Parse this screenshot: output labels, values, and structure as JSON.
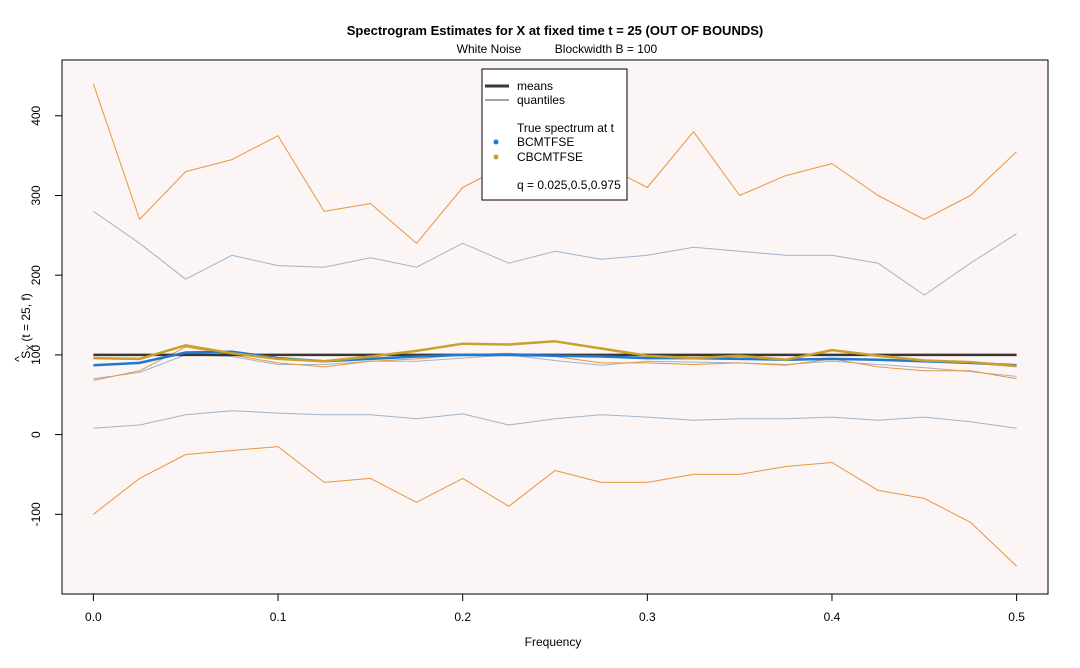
{
  "chart_data": {
    "type": "line",
    "title": "Spectrogram Estimates for X at fixed time t = 25 (OUT OF BOUNDS)",
    "subtitle_left": "White Noise",
    "subtitle_right": "Blockwidth B = 100",
    "xlabel": "Frequency",
    "ylabel": "Ŝ_X (t = 25, f)",
    "ylabel_hat": "^",
    "ylabel_S": "S",
    "ylabel_sub": "X",
    "ylabel_rest": "(t = 25, f)",
    "xlim": [
      -0.017,
      0.517
    ],
    "ylim": [
      -200,
      470
    ],
    "xticks": [
      0.0,
      0.1,
      0.2,
      0.3,
      0.4,
      0.5
    ],
    "xtick_labels": [
      "0.0",
      "0.1",
      "0.2",
      "0.3",
      "0.4",
      "0.5"
    ],
    "yticks": [
      -100,
      0,
      100,
      200,
      300,
      400
    ],
    "ytick_labels": [
      "-100",
      "0",
      "100",
      "200",
      "300",
      "400"
    ],
    "plot_background": "#fbf6f5",
    "legend": {
      "placement": "top-center",
      "means_label": "means",
      "quantiles_label": "quantiles",
      "true_label": "True spectrum at t",
      "bc_label": "BCMTFSE",
      "cbc_label": "CBCMTFSE",
      "q_label": "q = 0.025,0.5,0.975"
    },
    "colors": {
      "true": "#3d3530",
      "bc": "#1f78d1",
      "bc_quantile": "#9fb4cb",
      "cbc": "#c8a02c",
      "cbc_quantile": "#e8963d"
    },
    "x": [
      0.0,
      0.025,
      0.05,
      0.075,
      0.1,
      0.125,
      0.15,
      0.175,
      0.2,
      0.225,
      0.25,
      0.275,
      0.3,
      0.325,
      0.35,
      0.375,
      0.4,
      0.425,
      0.45,
      0.475,
      0.5
    ],
    "series": [
      {
        "name": "True spectrum at t",
        "role": "true",
        "values": [
          100,
          100,
          100,
          100,
          100,
          100,
          100,
          100,
          100,
          100,
          100,
          100,
          100,
          100,
          100,
          100,
          100,
          100,
          100,
          100,
          100
        ]
      },
      {
        "name": "BCMTFSE",
        "role": "bc-mean",
        "values": [
          87,
          90,
          103,
          104,
          96,
          92,
          95,
          98,
          100,
          100,
          99,
          98,
          96,
          96,
          95,
          94,
          95,
          94,
          92,
          90,
          87
        ]
      },
      {
        "name": "CBCMTFSE",
        "role": "cbc-mean",
        "values": [
          96,
          95,
          112,
          102,
          95,
          92,
          98,
          105,
          114,
          113,
          117,
          108,
          99,
          96,
          99,
          94,
          106,
          99,
          93,
          91,
          86
        ]
      },
      {
        "name": "BCMTFSE q=0.975",
        "role": "bc-quantile",
        "values": [
          280,
          240,
          195,
          225,
          212,
          210,
          222,
          210,
          240,
          215,
          230,
          220,
          225,
          235,
          230,
          225,
          225,
          215,
          175,
          215,
          252
        ]
      },
      {
        "name": "BCMTFSE q=0.5",
        "role": "bc-quantile",
        "values": [
          70,
          78,
          100,
          98,
          88,
          88,
          92,
          92,
          96,
          100,
          93,
          87,
          92,
          91,
          90,
          88,
          92,
          88,
          84,
          79,
          73
        ]
      },
      {
        "name": "BCMTFSE q=0.025",
        "role": "bc-quantile",
        "values": [
          8,
          12,
          25,
          30,
          27,
          25,
          25,
          20,
          26,
          12,
          20,
          25,
          22,
          18,
          20,
          20,
          22,
          18,
          22,
          16,
          8
        ]
      },
      {
        "name": "CBCMTFSE q=0.975",
        "role": "cbc-quantile",
        "values": [
          440,
          270,
          330,
          345,
          375,
          280,
          290,
          240,
          310,
          340,
          320,
          340,
          310,
          380,
          300,
          325,
          340,
          300,
          270,
          300,
          355
        ]
      },
      {
        "name": "CBCMTFSE q=0.5",
        "role": "cbc-quantile",
        "values": [
          68,
          80,
          110,
          100,
          90,
          85,
          92,
          95,
          100,
          102,
          98,
          90,
          90,
          88,
          90,
          87,
          95,
          85,
          80,
          80,
          70
        ]
      },
      {
        "name": "CBCMTFSE q=0.025",
        "role": "cbc-quantile",
        "values": [
          -100,
          -55,
          -25,
          -20,
          -15,
          -60,
          -55,
          -85,
          -55,
          -90,
          -45,
          -60,
          -60,
          -50,
          -50,
          -40,
          -35,
          -70,
          -80,
          -110,
          -165
        ]
      }
    ]
  }
}
